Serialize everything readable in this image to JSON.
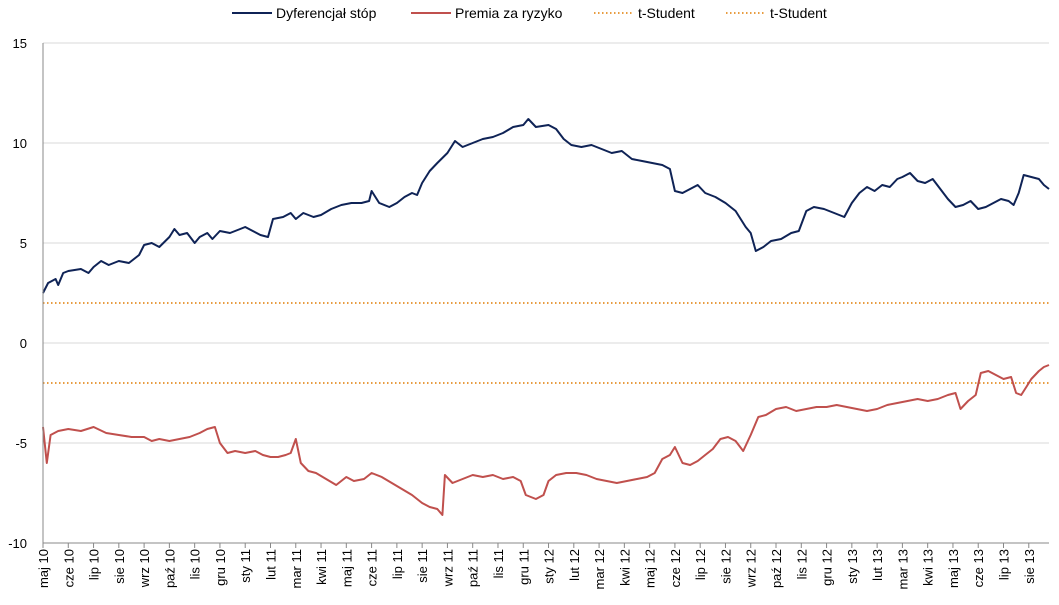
{
  "chart_data": {
    "type": "line",
    "title": "",
    "xlabel": "",
    "ylabel": "",
    "ylim": [
      -10,
      15
    ],
    "yticks": [
      15,
      10,
      5,
      0,
      -5,
      -10
    ],
    "grid": "horizontal",
    "legend_placement": "top",
    "categories": [
      "maj 10",
      "cze 10",
      "lip 10",
      "sie 10",
      "wrz 10",
      "paź 10",
      "lis 10",
      "gru 10",
      "sty 11",
      "lut 11",
      "mar 11",
      "kwi 11",
      "maj 11",
      "cze 11",
      "lip 11",
      "sie 11",
      "wrz 11",
      "paź 11",
      "lis 11",
      "gru 11",
      "sty 12",
      "lut 12",
      "mar 12",
      "kwi 12",
      "maj 12",
      "cze 12",
      "lip 12",
      "sie 12",
      "wrz 12",
      "paź 12",
      "lis 12",
      "gru 12",
      "sty 13",
      "lut 13",
      "mar 13",
      "kwi 13",
      "maj 13",
      "cze 13",
      "lip 13",
      "sie 13"
    ],
    "x_end": 39.8,
    "series": [
      {
        "name": "Dyferencjał stóp",
        "color": "#0f2356",
        "style": "solid",
        "points": [
          [
            0,
            2.5
          ],
          [
            0.2,
            3.0
          ],
          [
            0.5,
            3.2
          ],
          [
            0.6,
            2.9
          ],
          [
            0.8,
            3.5
          ],
          [
            1.0,
            3.6
          ],
          [
            1.5,
            3.7
          ],
          [
            1.8,
            3.5
          ],
          [
            2.0,
            3.8
          ],
          [
            2.3,
            4.1
          ],
          [
            2.6,
            3.9
          ],
          [
            3.0,
            4.1
          ],
          [
            3.4,
            4.0
          ],
          [
            3.8,
            4.4
          ],
          [
            4.0,
            4.9
          ],
          [
            4.3,
            5.0
          ],
          [
            4.6,
            4.8
          ],
          [
            5.0,
            5.3
          ],
          [
            5.2,
            5.7
          ],
          [
            5.4,
            5.4
          ],
          [
            5.7,
            5.5
          ],
          [
            6.0,
            5.0
          ],
          [
            6.2,
            5.3
          ],
          [
            6.5,
            5.5
          ],
          [
            6.7,
            5.2
          ],
          [
            7.0,
            5.6
          ],
          [
            7.4,
            5.5
          ],
          [
            7.8,
            5.7
          ],
          [
            8.0,
            5.8
          ],
          [
            8.3,
            5.6
          ],
          [
            8.6,
            5.4
          ],
          [
            8.9,
            5.3
          ],
          [
            9.1,
            6.2
          ],
          [
            9.5,
            6.3
          ],
          [
            9.8,
            6.5
          ],
          [
            10.0,
            6.2
          ],
          [
            10.3,
            6.5
          ],
          [
            10.7,
            6.3
          ],
          [
            11.0,
            6.4
          ],
          [
            11.4,
            6.7
          ],
          [
            11.8,
            6.9
          ],
          [
            12.2,
            7.0
          ],
          [
            12.6,
            7.0
          ],
          [
            12.9,
            7.1
          ],
          [
            13.0,
            7.6
          ],
          [
            13.3,
            7.0
          ],
          [
            13.7,
            6.8
          ],
          [
            14.0,
            7.0
          ],
          [
            14.3,
            7.3
          ],
          [
            14.6,
            7.5
          ],
          [
            14.8,
            7.4
          ],
          [
            15.0,
            8.0
          ],
          [
            15.3,
            8.6
          ],
          [
            15.6,
            9.0
          ],
          [
            16.0,
            9.5
          ],
          [
            16.3,
            10.1
          ],
          [
            16.6,
            9.8
          ],
          [
            17.0,
            10.0
          ],
          [
            17.4,
            10.2
          ],
          [
            17.8,
            10.3
          ],
          [
            18.2,
            10.5
          ],
          [
            18.6,
            10.8
          ],
          [
            19.0,
            10.9
          ],
          [
            19.2,
            11.2
          ],
          [
            19.5,
            10.8
          ],
          [
            20.0,
            10.9
          ],
          [
            20.3,
            10.7
          ],
          [
            20.6,
            10.2
          ],
          [
            20.9,
            9.9
          ],
          [
            21.3,
            9.8
          ],
          [
            21.7,
            9.9
          ],
          [
            22.1,
            9.7
          ],
          [
            22.5,
            9.5
          ],
          [
            22.9,
            9.6
          ],
          [
            23.3,
            9.2
          ],
          [
            23.7,
            9.1
          ],
          [
            24.1,
            9.0
          ],
          [
            24.5,
            8.9
          ],
          [
            24.8,
            8.7
          ],
          [
            25.0,
            7.6
          ],
          [
            25.3,
            7.5
          ],
          [
            25.6,
            7.7
          ],
          [
            25.9,
            7.9
          ],
          [
            26.2,
            7.5
          ],
          [
            26.6,
            7.3
          ],
          [
            27.0,
            7.0
          ],
          [
            27.4,
            6.6
          ],
          [
            27.8,
            5.8
          ],
          [
            28.0,
            5.5
          ],
          [
            28.2,
            4.6
          ],
          [
            28.5,
            4.8
          ],
          [
            28.8,
            5.1
          ],
          [
            29.2,
            5.2
          ],
          [
            29.6,
            5.5
          ],
          [
            29.9,
            5.6
          ],
          [
            30.2,
            6.6
          ],
          [
            30.5,
            6.8
          ],
          [
            30.9,
            6.7
          ],
          [
            31.3,
            6.5
          ],
          [
            31.7,
            6.3
          ],
          [
            32.0,
            7.0
          ],
          [
            32.3,
            7.5
          ],
          [
            32.6,
            7.8
          ],
          [
            32.9,
            7.6
          ],
          [
            33.2,
            7.9
          ],
          [
            33.5,
            7.8
          ],
          [
            33.8,
            8.2
          ],
          [
            34.0,
            8.3
          ],
          [
            34.3,
            8.5
          ],
          [
            34.6,
            8.1
          ],
          [
            34.9,
            8.0
          ],
          [
            35.2,
            8.2
          ],
          [
            35.5,
            7.7
          ],
          [
            35.8,
            7.2
          ],
          [
            36.1,
            6.8
          ],
          [
            36.4,
            6.9
          ],
          [
            36.7,
            7.1
          ],
          [
            37.0,
            6.7
          ],
          [
            37.3,
            6.8
          ],
          [
            37.6,
            7.0
          ],
          [
            37.9,
            7.2
          ],
          [
            38.2,
            7.1
          ],
          [
            38.4,
            6.9
          ],
          [
            38.6,
            7.5
          ],
          [
            38.8,
            8.4
          ],
          [
            39.1,
            8.3
          ],
          [
            39.4,
            8.2
          ],
          [
            39.6,
            7.9
          ],
          [
            39.8,
            7.7
          ]
        ]
      },
      {
        "name": "Premia za ryzyko",
        "color": "#c0504d",
        "style": "solid",
        "points": [
          [
            0,
            -4.2
          ],
          [
            0.15,
            -6.0
          ],
          [
            0.3,
            -4.6
          ],
          [
            0.6,
            -4.4
          ],
          [
            1.0,
            -4.3
          ],
          [
            1.5,
            -4.4
          ],
          [
            2.0,
            -4.2
          ],
          [
            2.5,
            -4.5
          ],
          [
            3.0,
            -4.6
          ],
          [
            3.5,
            -4.7
          ],
          [
            4.0,
            -4.7
          ],
          [
            4.3,
            -4.9
          ],
          [
            4.6,
            -4.8
          ],
          [
            5.0,
            -4.9
          ],
          [
            5.4,
            -4.8
          ],
          [
            5.8,
            -4.7
          ],
          [
            6.2,
            -4.5
          ],
          [
            6.5,
            -4.3
          ],
          [
            6.8,
            -4.2
          ],
          [
            7.0,
            -5.0
          ],
          [
            7.3,
            -5.5
          ],
          [
            7.6,
            -5.4
          ],
          [
            8.0,
            -5.5
          ],
          [
            8.4,
            -5.4
          ],
          [
            8.7,
            -5.6
          ],
          [
            9.0,
            -5.7
          ],
          [
            9.3,
            -5.7
          ],
          [
            9.6,
            -5.6
          ],
          [
            9.8,
            -5.5
          ],
          [
            10.0,
            -4.8
          ],
          [
            10.2,
            -6.0
          ],
          [
            10.5,
            -6.4
          ],
          [
            10.8,
            -6.5
          ],
          [
            11.2,
            -6.8
          ],
          [
            11.6,
            -7.1
          ],
          [
            12.0,
            -6.7
          ],
          [
            12.3,
            -6.9
          ],
          [
            12.7,
            -6.8
          ],
          [
            13.0,
            -6.5
          ],
          [
            13.4,
            -6.7
          ],
          [
            13.8,
            -7.0
          ],
          [
            14.2,
            -7.3
          ],
          [
            14.6,
            -7.6
          ],
          [
            15.0,
            -8.0
          ],
          [
            15.3,
            -8.2
          ],
          [
            15.6,
            -8.3
          ],
          [
            15.8,
            -8.6
          ],
          [
            15.9,
            -6.6
          ],
          [
            16.2,
            -7.0
          ],
          [
            16.6,
            -6.8
          ],
          [
            17.0,
            -6.6
          ],
          [
            17.4,
            -6.7
          ],
          [
            17.8,
            -6.6
          ],
          [
            18.2,
            -6.8
          ],
          [
            18.6,
            -6.7
          ],
          [
            18.9,
            -6.9
          ],
          [
            19.1,
            -7.6
          ],
          [
            19.5,
            -7.8
          ],
          [
            19.8,
            -7.6
          ],
          [
            20.0,
            -6.9
          ],
          [
            20.3,
            -6.6
          ],
          [
            20.7,
            -6.5
          ],
          [
            21.1,
            -6.5
          ],
          [
            21.5,
            -6.6
          ],
          [
            21.9,
            -6.8
          ],
          [
            22.3,
            -6.9
          ],
          [
            22.7,
            -7.0
          ],
          [
            23.1,
            -6.9
          ],
          [
            23.5,
            -6.8
          ],
          [
            23.9,
            -6.7
          ],
          [
            24.2,
            -6.5
          ],
          [
            24.5,
            -5.8
          ],
          [
            24.8,
            -5.6
          ],
          [
            25.0,
            -5.2
          ],
          [
            25.3,
            -6.0
          ],
          [
            25.6,
            -6.1
          ],
          [
            25.9,
            -5.9
          ],
          [
            26.2,
            -5.6
          ],
          [
            26.5,
            -5.3
          ],
          [
            26.8,
            -4.8
          ],
          [
            27.1,
            -4.7
          ],
          [
            27.4,
            -4.9
          ],
          [
            27.7,
            -5.4
          ],
          [
            28.0,
            -4.6
          ],
          [
            28.3,
            -3.7
          ],
          [
            28.6,
            -3.6
          ],
          [
            29.0,
            -3.3
          ],
          [
            29.4,
            -3.2
          ],
          [
            29.8,
            -3.4
          ],
          [
            30.2,
            -3.3
          ],
          [
            30.6,
            -3.2
          ],
          [
            31.0,
            -3.2
          ],
          [
            31.4,
            -3.1
          ],
          [
            31.8,
            -3.2
          ],
          [
            32.2,
            -3.3
          ],
          [
            32.6,
            -3.4
          ],
          [
            33.0,
            -3.3
          ],
          [
            33.4,
            -3.1
          ],
          [
            33.8,
            -3.0
          ],
          [
            34.2,
            -2.9
          ],
          [
            34.6,
            -2.8
          ],
          [
            35.0,
            -2.9
          ],
          [
            35.4,
            -2.8
          ],
          [
            35.8,
            -2.6
          ],
          [
            36.1,
            -2.5
          ],
          [
            36.3,
            -3.3
          ],
          [
            36.6,
            -2.9
          ],
          [
            36.9,
            -2.6
          ],
          [
            37.1,
            -1.5
          ],
          [
            37.4,
            -1.4
          ],
          [
            37.7,
            -1.6
          ],
          [
            38.0,
            -1.8
          ],
          [
            38.3,
            -1.7
          ],
          [
            38.5,
            -2.5
          ],
          [
            38.7,
            -2.6
          ],
          [
            38.9,
            -2.2
          ],
          [
            39.1,
            -1.8
          ],
          [
            39.4,
            -1.4
          ],
          [
            39.6,
            -1.2
          ],
          [
            39.8,
            -1.1
          ]
        ]
      },
      {
        "name": "t-Student",
        "color": "#e07b00",
        "style": "dotted",
        "constant": 2.0
      },
      {
        "name": "t-Student",
        "color": "#e07b00",
        "style": "dotted",
        "constant": -2.0
      }
    ]
  }
}
